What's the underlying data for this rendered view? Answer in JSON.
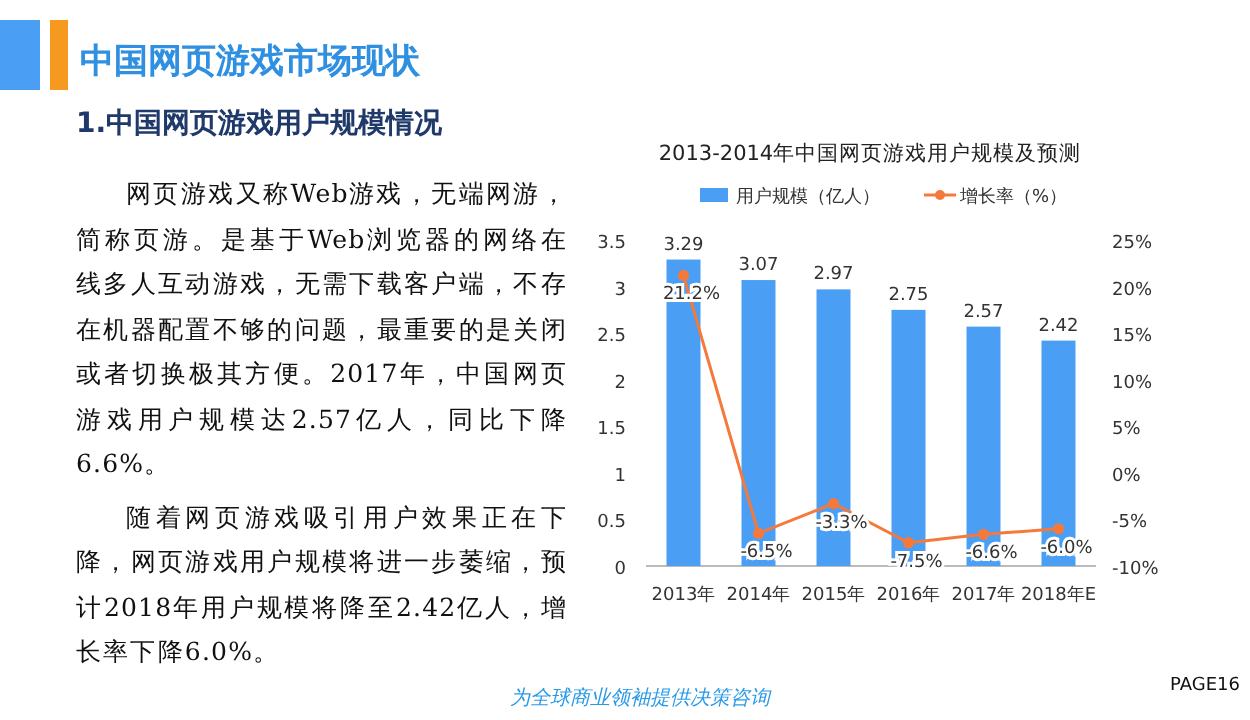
{
  "chart_data": {
    "type": "bar",
    "title": "2013-2014年中国网页游戏用户规模及预测",
    "categories": [
      "2013年",
      "2014年",
      "2015年",
      "2016年",
      "2017年",
      "2018年E"
    ],
    "series": [
      {
        "name": "用户规模（亿人）",
        "color": "#4a9ff5",
        "values": [
          3.29,
          3.07,
          2.97,
          2.75,
          2.57,
          2.42
        ],
        "value_labels": [
          "3.29",
          "3.07",
          "2.97",
          "2.75",
          "2.57",
          "2.42"
        ]
      },
      {
        "name": "增长率（%）",
        "type": "line",
        "axis": "y2",
        "color": "#f5793a",
        "marker": "circle",
        "values": [
          21.2,
          -6.5,
          -3.3,
          -7.5,
          -6.6,
          -6.0
        ],
        "value_labels": [
          "21.2%",
          "-6.5%",
          "-3.3%",
          "-7.5%",
          "-6.6%",
          "-6.0%"
        ]
      }
    ],
    "ylim": [
      0,
      3.5
    ],
    "yticks": [
      0,
      0.5,
      1,
      1.5,
      2,
      2.5,
      3,
      3.5
    ],
    "y2lim": [
      -10,
      25
    ],
    "y2ticks": [
      {
        "value": -10,
        "label": "-10%"
      },
      {
        "value": -5,
        "label": "-5%"
      },
      {
        "value": 0,
        "label": "0%"
      },
      {
        "value": 5,
        "label": "5%"
      },
      {
        "value": 10,
        "label": "10%"
      },
      {
        "value": 15,
        "label": "15%"
      },
      {
        "value": 20,
        "label": "20%"
      },
      {
        "value": 25,
        "label": "25%"
      }
    ],
    "legend": "top",
    "grid": false,
    "annotations": [
      "中国网页游戏市场现状",
      "1.中国网页游戏用户规模情况",
      "网页游戏又称Web游戏，无端网游，简称页游。是基于Web浏览器的网络在线多人互动游戏，无需下载客户端，不存在机器配置不够的问题，最重要的是关闭或者切换极其方便。2017年，中国网页游戏用户规模达2.57亿人，同比下降6.6%。",
      "随着网页游戏吸引用户效果正在下降，网页游戏用户规模将进一步萎缩，预计2018年用户规模将降至2.42亿人，增长率下降6.0%。",
      "为全球商业领袖提供决策咨询",
      "PAGE16"
    ]
  }
}
